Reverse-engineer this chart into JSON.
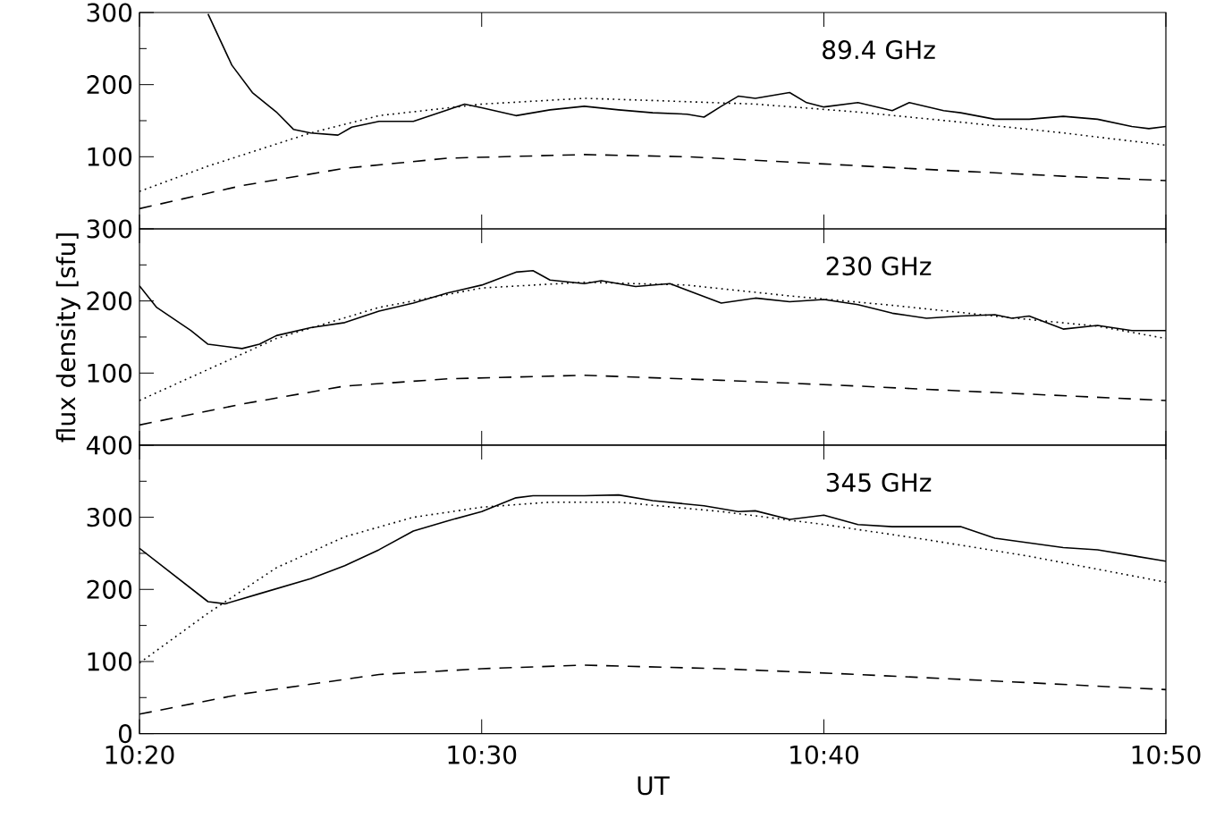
{
  "chart_data": [
    {
      "type": "line",
      "annotations": [
        "89.4 GHz"
      ],
      "xlim": [
        10.3333,
        10.8333
      ],
      "xticks": [
        {
          "value": 10.3333,
          "label": null
        },
        {
          "value": 10.5,
          "label": null
        },
        {
          "value": 10.6667,
          "label": null
        },
        {
          "value": 10.8333,
          "label": null
        }
      ],
      "ylim": [
        0,
        300
      ],
      "yticks": [
        100,
        200,
        300
      ],
      "tick_labels": "y",
      "series": [
        {
          "color": "#000000",
          "line_style": "solid",
          "x": [
            10.3667,
            10.3783,
            10.3883,
            10.4,
            10.4083,
            10.4167,
            10.43,
            10.4367,
            10.45,
            10.4667,
            10.4833,
            10.4917,
            10.5,
            10.5167,
            10.5333,
            10.55,
            10.5667,
            10.5833,
            10.6,
            10.6083,
            10.6167,
            10.625,
            10.6333,
            10.65,
            10.6583,
            10.6667,
            10.6833,
            10.7,
            10.7083,
            10.725,
            10.7333,
            10.75,
            10.7667,
            10.7833,
            10.8,
            10.8167,
            10.825,
            10.8333
          ],
          "values": [
            298,
            227,
            189,
            162,
            138,
            133,
            130,
            141,
            149,
            149,
            165,
            173,
            168,
            157,
            165,
            170,
            165,
            161,
            159,
            155,
            170,
            184,
            181,
            189,
            175,
            169,
            175,
            164,
            175,
            164,
            161,
            152,
            152,
            156,
            152,
            142,
            139,
            142
          ]
        },
        {
          "color": "#000000",
          "line_style": "dotted",
          "x": [
            10.3333,
            10.3667,
            10.4167,
            10.45,
            10.5,
            10.55,
            10.5833,
            10.6333,
            10.6833,
            10.7333,
            10.7833,
            10.8333
          ],
          "values": [
            52,
            87,
            133,
            157,
            173,
            181,
            178,
            173,
            162,
            148,
            133,
            116
          ]
        },
        {
          "color": "#000000",
          "line_style": "dashed",
          "x": [
            10.3333,
            10.3833,
            10.4333,
            10.4833,
            10.55,
            10.6,
            10.6667,
            10.7333,
            10.7833,
            10.8333
          ],
          "values": [
            28,
            60,
            84,
            98,
            103,
            100,
            90,
            80,
            73,
            67
          ]
        }
      ]
    },
    {
      "type": "line",
      "annotations": [
        "230 GHz"
      ],
      "ylabel": "flux density [sfu]",
      "xlim": [
        10.3333,
        10.8333
      ],
      "xticks": [
        {
          "value": 10.3333,
          "label": null
        },
        {
          "value": 10.5,
          "label": null
        },
        {
          "value": 10.6667,
          "label": null
        },
        {
          "value": 10.8333,
          "label": null
        }
      ],
      "ylim": [
        0,
        300
      ],
      "yticks": [
        100,
        200,
        300
      ],
      "tick_labels": "y",
      "series": [
        {
          "color": "#000000",
          "line_style": "solid",
          "x": [
            10.3333,
            10.3417,
            10.3583,
            10.3667,
            10.3833,
            10.3917,
            10.4,
            10.4167,
            10.4333,
            10.45,
            10.4667,
            10.4833,
            10.5,
            10.5167,
            10.525,
            10.5333,
            10.55,
            10.5583,
            10.575,
            10.5917,
            10.6167,
            10.6333,
            10.65,
            10.6667,
            10.6833,
            10.7,
            10.7167,
            10.7333,
            10.75,
            10.7583,
            10.7667,
            10.7833,
            10.8,
            10.8167,
            10.8333
          ],
          "values": [
            221,
            191,
            159,
            140,
            134,
            140,
            152,
            163,
            170,
            186,
            197,
            211,
            222,
            240,
            242,
            229,
            224,
            228,
            220,
            224,
            197,
            204,
            199,
            202,
            195,
            183,
            176,
            179,
            181,
            176,
            179,
            161,
            166,
            159,
            159
          ]
        },
        {
          "color": "#000000",
          "line_style": "dotted",
          "x": [
            10.3333,
            10.3667,
            10.4,
            10.45,
            10.5,
            10.55,
            10.6,
            10.65,
            10.7,
            10.75,
            10.8,
            10.8333
          ],
          "values": [
            62,
            105,
            148,
            191,
            218,
            226,
            222,
            207,
            194,
            179,
            165,
            148
          ]
        },
        {
          "color": "#000000",
          "line_style": "dashed",
          "x": [
            10.3333,
            10.3833,
            10.4333,
            10.4833,
            10.55,
            10.6167,
            10.6833,
            10.75,
            10.8333
          ],
          "values": [
            28,
            57,
            82,
            92,
            97,
            90,
            82,
            73,
            62
          ]
        }
      ]
    },
    {
      "type": "line",
      "annotations": [
        "345 GHz"
      ],
      "xlabel": "UT",
      "xlim": [
        10.3333,
        10.8333
      ],
      "xticks": [
        {
          "value": 10.3333,
          "label": "10:20"
        },
        {
          "value": 10.5,
          "label": "10:30"
        },
        {
          "value": 10.6667,
          "label": "10:40"
        },
        {
          "value": 10.8333,
          "label": "10:50"
        }
      ],
      "ylim": [
        0,
        400
      ],
      "yticks": [
        0,
        100,
        200,
        300,
        400
      ],
      "series": [
        {
          "color": "#000000",
          "line_style": "solid",
          "x": [
            10.3333,
            10.35,
            10.3667,
            10.375,
            10.3917,
            10.4167,
            10.4333,
            10.45,
            10.4667,
            10.4833,
            10.5,
            10.5167,
            10.525,
            10.55,
            10.5667,
            10.5833,
            10.6083,
            10.625,
            10.6333,
            10.65,
            10.6667,
            10.6833,
            10.7,
            10.7333,
            10.75,
            10.7833,
            10.8,
            10.8333
          ],
          "values": [
            257,
            220,
            183,
            180,
            194,
            215,
            233,
            255,
            281,
            295,
            308,
            327,
            330,
            330,
            331,
            323,
            316,
            308,
            309,
            297,
            303,
            290,
            287,
            287,
            271,
            258,
            255,
            239
          ]
        },
        {
          "color": "#000000",
          "line_style": "dotted",
          "x": [
            10.3333,
            10.3667,
            10.4,
            10.4333,
            10.4667,
            10.5,
            10.5333,
            10.5667,
            10.6167,
            10.6667,
            10.7167,
            10.7667,
            10.8333
          ],
          "values": [
            98,
            167,
            230,
            273,
            300,
            314,
            321,
            321,
            308,
            290,
            269,
            246,
            210
          ]
        },
        {
          "color": "#000000",
          "line_style": "dashed",
          "x": [
            10.3333,
            10.3833,
            10.45,
            10.5,
            10.55,
            10.6167,
            10.6833,
            10.75,
            10.8333
          ],
          "values": [
            27,
            55,
            82,
            90,
            95,
            90,
            82,
            73,
            61
          ]
        }
      ]
    }
  ]
}
